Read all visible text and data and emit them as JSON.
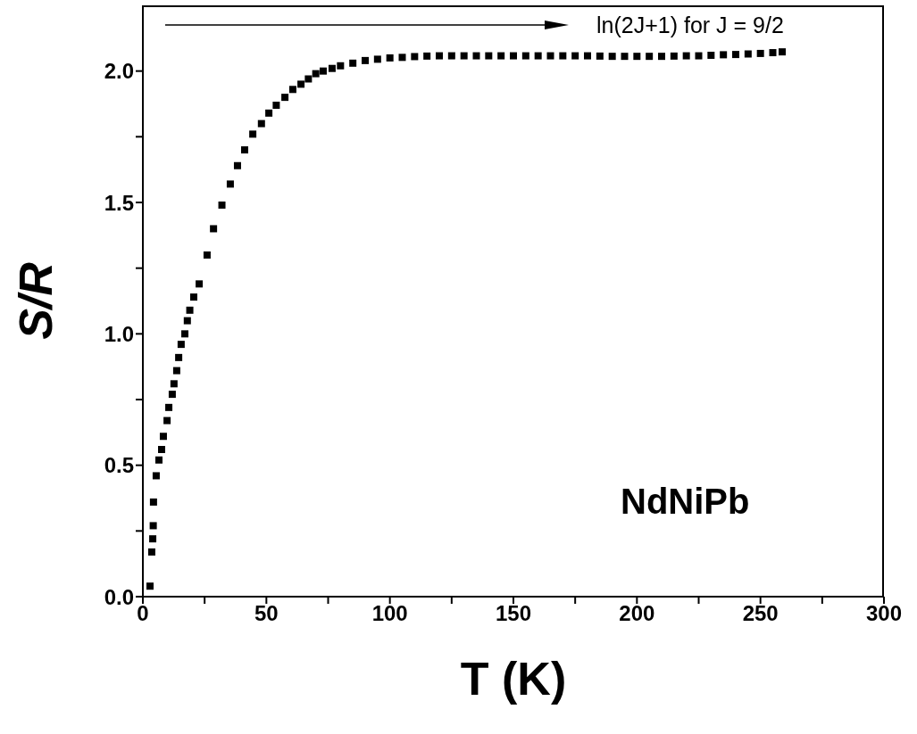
{
  "chart_data": {
    "type": "scatter",
    "xlabel": "T (K)",
    "ylabel": "S/R",
    "marker": "square",
    "color": "#000000",
    "x": [
      2.9,
      3.6,
      4.0,
      4.2,
      4.3,
      5.4,
      6.5,
      7.6,
      8.3,
      9.8,
      10.5,
      11.9,
      12.6,
      13.7,
      14.5,
      15.5,
      17,
      18,
      19,
      20.6,
      22.8,
      26,
      28.6,
      32,
      35.4,
      38.3,
      41.2,
      44.5,
      48,
      51,
      54,
      57.5,
      60.7,
      64,
      67,
      70,
      73,
      76.6,
      80,
      85,
      90,
      95,
      100,
      105,
      110,
      115,
      120,
      125,
      130,
      135,
      140,
      145,
      150,
      155,
      160,
      165,
      170,
      175,
      180,
      185,
      190,
      195,
      200,
      205,
      210,
      215,
      220,
      225,
      230,
      235,
      240,
      245,
      250,
      255,
      258.8
    ],
    "values": [
      0.04,
      0.17,
      0.22,
      0.27,
      0.36,
      0.46,
      0.52,
      0.56,
      0.61,
      0.67,
      0.72,
      0.77,
      0.81,
      0.86,
      0.91,
      0.96,
      1.0,
      1.05,
      1.09,
      1.14,
      1.19,
      1.3,
      1.4,
      1.49,
      1.57,
      1.64,
      1.7,
      1.76,
      1.8,
      1.84,
      1.87,
      1.9,
      1.93,
      1.95,
      1.97,
      1.99,
      2.0,
      2.01,
      2.02,
      2.03,
      2.04,
      2.045,
      2.05,
      2.052,
      2.055,
      2.057,
      2.058,
      2.058,
      2.058,
      2.058,
      2.058,
      2.058,
      2.058,
      2.058,
      2.058,
      2.058,
      2.058,
      2.058,
      2.058,
      2.057,
      2.056,
      2.056,
      2.056,
      2.056,
      2.056,
      2.057,
      2.058,
      2.058,
      2.06,
      2.062,
      2.063,
      2.065,
      2.067,
      2.07,
      2.073
    ],
    "xlim": [
      0,
      300
    ],
    "xticks": [
      0,
      {
        "value": 25,
        "label": null
      },
      50,
      {
        "value": 75,
        "label": null
      },
      100,
      {
        "value": 125,
        "label": null
      },
      150,
      {
        "value": 175,
        "label": null
      },
      200,
      {
        "value": 225,
        "label": null
      },
      250,
      {
        "value": 275,
        "label": null
      },
      300
    ],
    "ylim": [
      0,
      2.25
    ],
    "yticks": [
      "0.0",
      {
        "value": 0.25,
        "label": null
      },
      {
        "value": 0.5,
        "label": "0.5"
      },
      {
        "value": 0.75,
        "label": null
      },
      {
        "value": 1,
        "label": "1.0"
      },
      {
        "value": 1.25,
        "label": null
      },
      {
        "value": 1.5,
        "label": "1.5"
      },
      {
        "value": 1.75,
        "label": null
      },
      {
        "value": 2,
        "label": "2.0"
      }
    ],
    "grid": false,
    "legend": false,
    "annotations": [
      "ln(2J+1) for J = 9/2",
      "NdNiPb"
    ]
  }
}
